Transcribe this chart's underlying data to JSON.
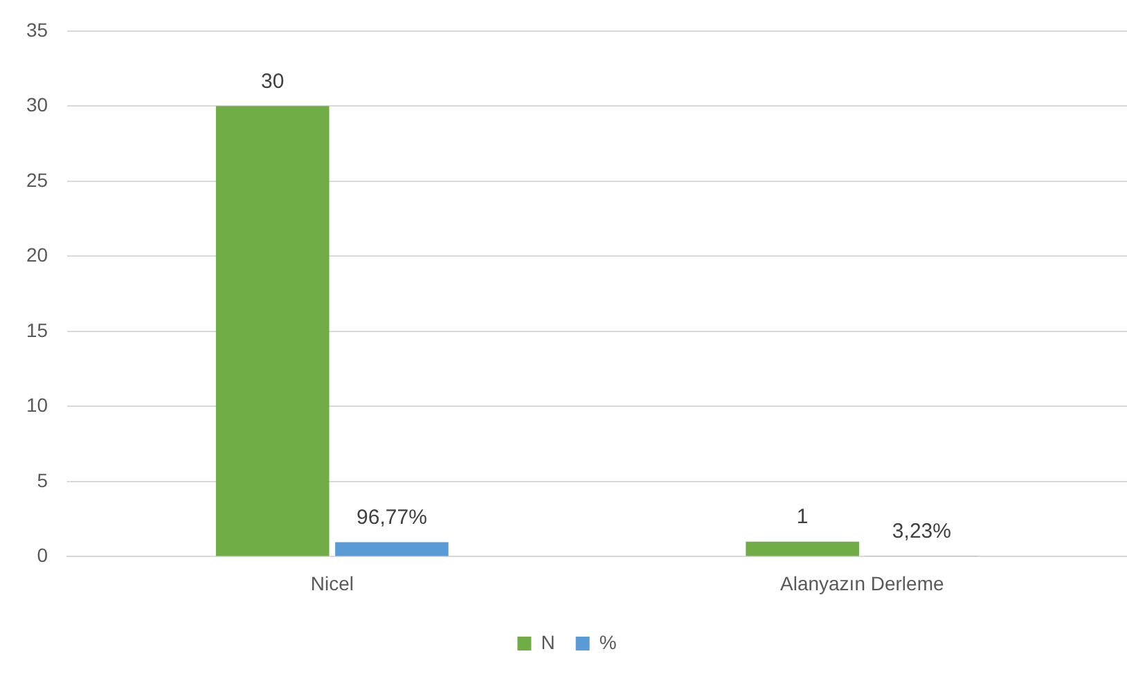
{
  "chart_data": {
    "type": "bar",
    "categories": [
      "Nicel",
      "Alanyazın Derleme"
    ],
    "series": [
      {
        "name": "N",
        "color": "#70ad47",
        "values": [
          30,
          1
        ],
        "value_labels": [
          "30",
          "1"
        ]
      },
      {
        "name": "%",
        "color": "#5b9bd5",
        "values": [
          0.9677,
          0.0323
        ],
        "value_labels": [
          "96,77%",
          "3,23%"
        ]
      }
    ],
    "ylim": [
      0,
      35
    ],
    "yticks": [
      0,
      5,
      10,
      15,
      20,
      25,
      30,
      35
    ],
    "grid": "y",
    "legend": "bottom"
  }
}
